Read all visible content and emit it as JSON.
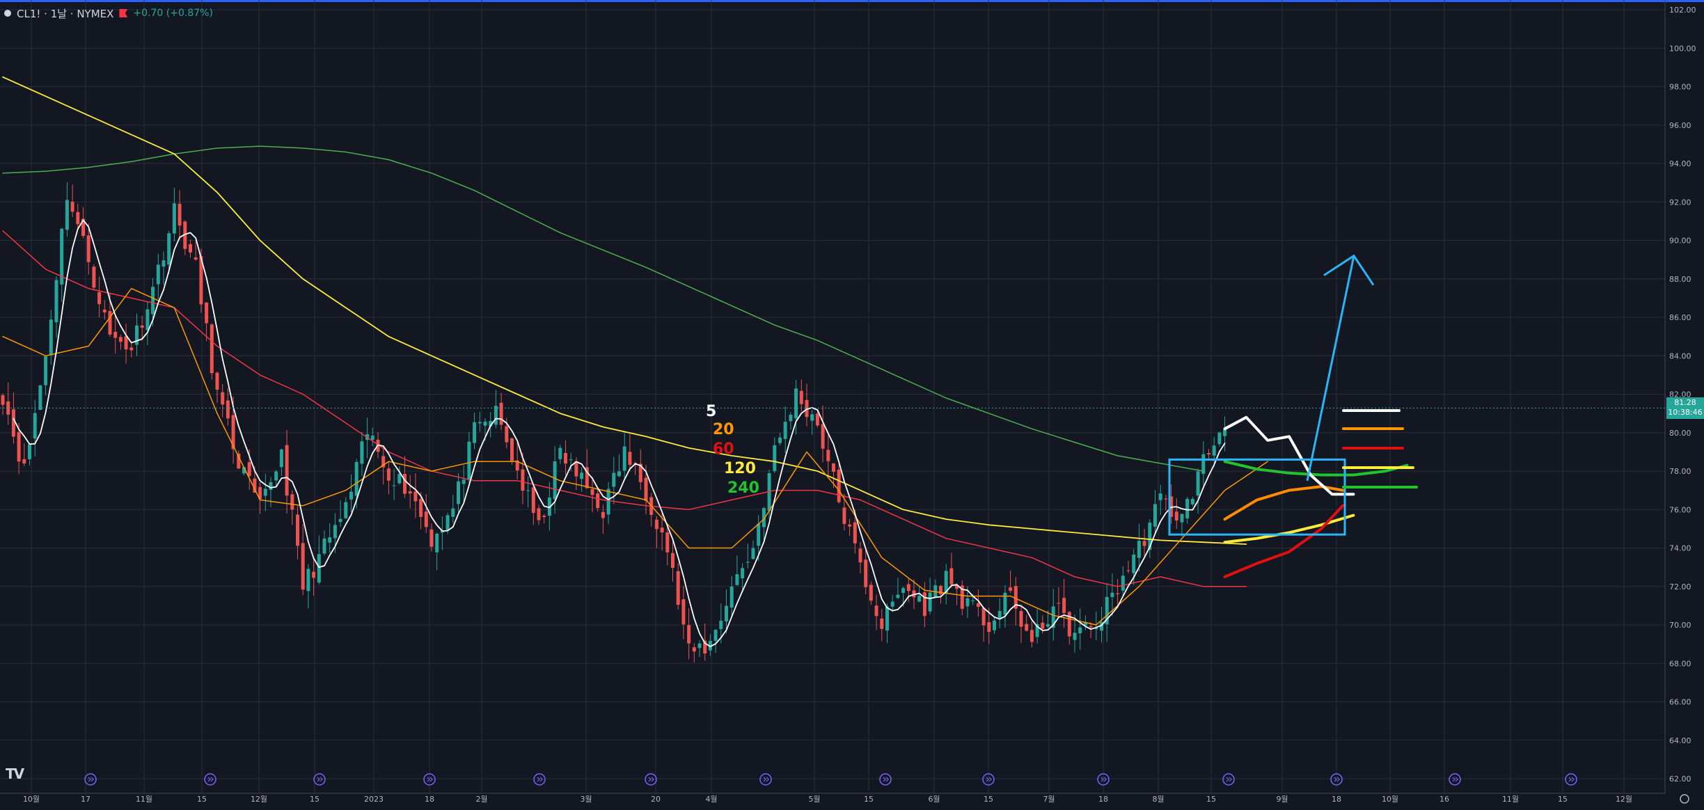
{
  "header": {
    "symbol": "CL1! · 1날 · NYMEX",
    "change": "+0.70 (+0.87%)"
  },
  "logo": "TV",
  "price_tag": {
    "price": "81.28",
    "countdown": "10:38:46"
  },
  "colors": {
    "background": "#131722",
    "grid": "#2a2e39",
    "up": "#26a69a",
    "down": "#ef5350",
    "ma5": "#ffffff",
    "ma20": "#ff9800",
    "ma60": "#f23645",
    "ma120": "#ffeb3b",
    "ma240": "#4caf50",
    "annotation_box": "#29b6f6"
  },
  "legend": [
    {
      "label": "5",
      "color": "#ffffff"
    },
    {
      "label": "20",
      "color": "#ff9800"
    },
    {
      "label": "60",
      "color": "#e01010"
    },
    {
      "label": "120",
      "color": "#ffeb3b"
    },
    {
      "label": "240",
      "color": "#22c32e"
    }
  ],
  "chart_data": {
    "type": "candlestick",
    "title": "",
    "ylim": [
      62,
      102
    ],
    "y_ticks": [
      "102.00",
      "100.00",
      "98.00",
      "96.00",
      "94.00",
      "92.00",
      "90.00",
      "88.00",
      "86.00",
      "84.00",
      "82.00",
      "80.00",
      "78.00",
      "76.00",
      "74.00",
      "72.00",
      "70.00",
      "68.00",
      "66.00",
      "64.00",
      "62.00"
    ],
    "x_ticks": [
      "10월",
      "17",
      "11월",
      "15",
      "12월",
      "15",
      "2023",
      "18",
      "2월",
      "3월",
      "20",
      "4월",
      "5월",
      "15",
      "6월",
      "15",
      "7월",
      "18",
      "8월",
      "15",
      "9월",
      "18",
      "10월",
      "16",
      "11월",
      "15",
      "12월"
    ],
    "series": [
      {
        "name": "5",
        "kind": "moving-average"
      },
      {
        "name": "20",
        "kind": "moving-average"
      },
      {
        "name": "60",
        "kind": "moving-average"
      },
      {
        "name": "120",
        "kind": "moving-average"
      },
      {
        "name": "240",
        "kind": "moving-average"
      }
    ],
    "anchor_closes": [
      [
        0,
        82
      ],
      [
        4,
        78
      ],
      [
        8,
        84
      ],
      [
        12,
        92.5
      ],
      [
        16,
        89
      ],
      [
        20,
        85
      ],
      [
        24,
        84.5
      ],
      [
        28,
        87.5
      ],
      [
        32,
        91.5
      ],
      [
        36,
        88.5
      ],
      [
        40,
        82
      ],
      [
        44,
        78.5
      ],
      [
        48,
        76
      ],
      [
        52,
        79
      ],
      [
        56,
        72
      ],
      [
        60,
        74
      ],
      [
        64,
        76
      ],
      [
        68,
        80
      ],
      [
        72,
        78
      ],
      [
        76,
        77
      ],
      [
        80,
        74.5
      ],
      [
        84,
        76
      ],
      [
        88,
        80
      ],
      [
        92,
        81
      ],
      [
        96,
        78
      ],
      [
        100,
        75
      ],
      [
        104,
        79
      ],
      [
        108,
        77.5
      ],
      [
        112,
        76
      ],
      [
        116,
        79
      ],
      [
        120,
        77
      ],
      [
        124,
        74
      ],
      [
        128,
        68.5
      ],
      [
        132,
        69
      ],
      [
        136,
        72
      ],
      [
        140,
        74
      ],
      [
        144,
        79
      ],
      [
        148,
        82
      ],
      [
        152,
        80.5
      ],
      [
        156,
        76.5
      ],
      [
        160,
        73
      ],
      [
        164,
        70
      ],
      [
        168,
        72
      ],
      [
        172,
        71
      ],
      [
        176,
        72.5
      ],
      [
        180,
        71
      ],
      [
        184,
        70
      ],
      [
        188,
        71.5
      ],
      [
        192,
        69
      ],
      [
        196,
        71
      ],
      [
        200,
        69.5
      ],
      [
        204,
        70
      ],
      [
        208,
        72
      ],
      [
        212,
        74
      ],
      [
        216,
        76.5
      ],
      [
        220,
        75.5
      ],
      [
        224,
        78.5
      ],
      [
        228,
        80.5
      ]
    ],
    "moving_averages": {
      "ma20": [
        [
          0,
          85
        ],
        [
          8,
          84
        ],
        [
          16,
          84.5
        ],
        [
          24,
          87.5
        ],
        [
          32,
          86.5
        ],
        [
          40,
          81
        ],
        [
          48,
          76.5
        ],
        [
          56,
          76.2
        ],
        [
          64,
          77
        ],
        [
          72,
          78.5
        ],
        [
          80,
          78
        ],
        [
          88,
          78.5
        ],
        [
          96,
          78.5
        ],
        [
          104,
          77.5
        ],
        [
          112,
          77
        ],
        [
          120,
          76.5
        ],
        [
          128,
          74
        ],
        [
          136,
          74
        ],
        [
          142,
          75.5
        ],
        [
          150,
          79
        ],
        [
          156,
          77
        ],
        [
          164,
          73.5
        ],
        [
          172,
          71.8
        ],
        [
          180,
          71.5
        ],
        [
          188,
          71.5
        ],
        [
          196,
          70.5
        ],
        [
          204,
          70
        ],
        [
          212,
          72
        ],
        [
          220,
          74.5
        ],
        [
          228,
          77
        ],
        [
          236,
          78.5
        ]
      ],
      "ma60": [
        [
          0,
          90.5
        ],
        [
          8,
          88.5
        ],
        [
          16,
          87.5
        ],
        [
          24,
          87
        ],
        [
          32,
          86.5
        ],
        [
          40,
          84.5
        ],
        [
          48,
          83
        ],
        [
          56,
          82
        ],
        [
          64,
          80.5
        ],
        [
          72,
          79
        ],
        [
          80,
          78
        ],
        [
          88,
          77.5
        ],
        [
          96,
          77.5
        ],
        [
          104,
          77
        ],
        [
          112,
          76.5
        ],
        [
          120,
          76.2
        ],
        [
          128,
          76
        ],
        [
          136,
          76.5
        ],
        [
          144,
          77
        ],
        [
          152,
          77
        ],
        [
          160,
          76.5
        ],
        [
          168,
          75.5
        ],
        [
          176,
          74.5
        ],
        [
          184,
          74
        ],
        [
          192,
          73.5
        ],
        [
          200,
          72.5
        ],
        [
          208,
          72
        ],
        [
          216,
          72.5
        ],
        [
          224,
          72
        ],
        [
          232,
          72
        ]
      ],
      "ma120": [
        [
          0,
          98.5
        ],
        [
          8,
          97.5
        ],
        [
          16,
          96.5
        ],
        [
          24,
          95.5
        ],
        [
          32,
          94.5
        ],
        [
          40,
          92.5
        ],
        [
          48,
          90
        ],
        [
          56,
          88
        ],
        [
          64,
          86.5
        ],
        [
          72,
          85
        ],
        [
          80,
          84
        ],
        [
          88,
          83
        ],
        [
          96,
          82
        ],
        [
          104,
          81
        ],
        [
          112,
          80.3
        ],
        [
          120,
          79.8
        ],
        [
          128,
          79.2
        ],
        [
          136,
          78.8
        ],
        [
          144,
          78.5
        ],
        [
          152,
          78
        ],
        [
          160,
          77
        ],
        [
          168,
          76
        ],
        [
          176,
          75.5
        ],
        [
          184,
          75.2
        ],
        [
          192,
          75
        ],
        [
          200,
          74.8
        ],
        [
          208,
          74.6
        ],
        [
          216,
          74.4
        ],
        [
          224,
          74.3
        ],
        [
          232,
          74.2
        ]
      ],
      "ma240": [
        [
          0,
          93.5
        ],
        [
          8,
          93.6
        ],
        [
          16,
          93.8
        ],
        [
          24,
          94.1
        ],
        [
          32,
          94.5
        ],
        [
          40,
          94.8
        ],
        [
          48,
          94.9
        ],
        [
          56,
          94.8
        ],
        [
          64,
          94.6
        ],
        [
          72,
          94.2
        ],
        [
          80,
          93.5
        ],
        [
          88,
          92.6
        ],
        [
          96,
          91.5
        ],
        [
          104,
          90.4
        ],
        [
          112,
          89.5
        ],
        [
          120,
          88.6
        ],
        [
          128,
          87.6
        ],
        [
          136,
          86.6
        ],
        [
          144,
          85.6
        ],
        [
          152,
          84.8
        ],
        [
          160,
          83.8
        ],
        [
          168,
          82.8
        ],
        [
          176,
          81.8
        ],
        [
          184,
          81
        ],
        [
          192,
          80.2
        ],
        [
          200,
          79.5
        ],
        [
          208,
          78.8
        ],
        [
          216,
          78.4
        ],
        [
          224,
          78
        ]
      ]
    },
    "projections": {
      "ma5": [
        [
          228,
          80.2
        ],
        [
          232,
          80.8
        ],
        [
          236,
          79.6
        ],
        [
          240,
          79.8
        ],
        [
          244,
          77.8
        ],
        [
          248,
          76.8
        ],
        [
          252,
          76.8
        ]
      ],
      "ma20": [
        [
          228,
          75.5
        ],
        [
          234,
          76.5
        ],
        [
          240,
          77
        ],
        [
          246,
          77.2
        ],
        [
          250,
          77
        ]
      ],
      "ma60": [
        [
          228,
          72.5
        ],
        [
          234,
          73.2
        ],
        [
          240,
          73.8
        ],
        [
          246,
          75
        ],
        [
          250,
          76.2
        ]
      ],
      "ma120": [
        [
          228,
          74.3
        ],
        [
          234,
          74.5
        ],
        [
          240,
          74.8
        ],
        [
          246,
          75.2
        ],
        [
          252,
          75.7
        ]
      ],
      "ma240": [
        [
          228,
          78.5
        ],
        [
          234,
          78.1
        ],
        [
          240,
          77.9
        ],
        [
          246,
          77.8
        ],
        [
          252,
          77.8
        ],
        [
          258,
          78
        ],
        [
          262,
          78.3
        ]
      ]
    },
    "annotation_box": {
      "y_top": 78.6,
      "y_bottom": 74.7
    },
    "arrow": {
      "y_start": 77.5,
      "y_tip": 89.2
    }
  }
}
